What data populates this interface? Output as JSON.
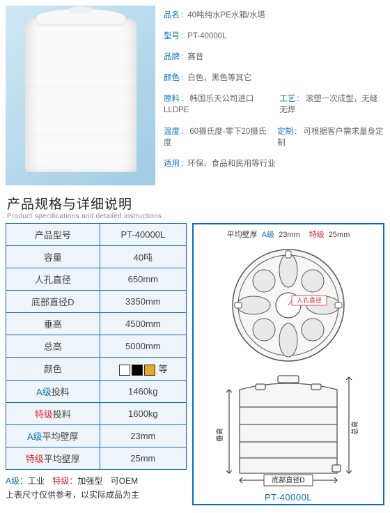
{
  "product": {
    "name_label": "品名",
    "name_value": "40吨纯水PE水箱/水塔",
    "model_label": "型号",
    "model_value": "PT-40000L",
    "brand_label": "品牌",
    "brand_value": "赛普",
    "color_label": "颜色",
    "color_value": "白色，黑色等其它",
    "material_label": "原料",
    "material_value": "韩国乐天公司进口LLDPE",
    "process_label": "工艺",
    "process_value": "滚塑一次成型，无缝无焊",
    "temp_label": "温度",
    "temp_value": "60摄氏度-零下20摄氏度",
    "custom_label": "定制",
    "custom_value": "可根据客户需求量身定制",
    "app_label": "适用",
    "app_value": "环保、食品和民用等行业"
  },
  "section_title": {
    "zh": "产品规格与详细说明",
    "en": "Product specifications and detailed instructions"
  },
  "table": {
    "rows": [
      {
        "label": "产品型号",
        "value": "PT-40000L"
      },
      {
        "label": "容量",
        "value": "40吨"
      },
      {
        "label": "人孔直径",
        "value": "650mm"
      },
      {
        "label": "底部直径D",
        "value": "3350mm"
      },
      {
        "label": "垂高",
        "value": "4500mm"
      },
      {
        "label": "总高",
        "value": "5000mm"
      },
      {
        "label": "颜色",
        "value": ""
      },
      {
        "label_prefix": "A级",
        "label_suffix": "投料",
        "value": "1460kg",
        "grade": "a"
      },
      {
        "label_prefix": "特级",
        "label_suffix": "投料",
        "value": "1600kg",
        "grade": "t"
      },
      {
        "label_prefix": "A级",
        "label_suffix": "平均壁厚",
        "value": "23mm",
        "grade": "a"
      },
      {
        "label_prefix": "特级",
        "label_suffix": "平均壁厚",
        "value": "25mm",
        "grade": "t"
      }
    ],
    "color_row_suffix": "等",
    "swatches": [
      "#ffffff",
      "#000000",
      "#e6a62e"
    ]
  },
  "footnotes": {
    "a_label": "A级：",
    "a_text": "工业",
    "t_label": "特级：",
    "t_text": "加强型",
    "oem": "可OEM",
    "disclaimer": "上表尺寸仅供参考，以实际成品为主"
  },
  "diagram": {
    "thickness_label": "平均壁厚",
    "a_label": "A级",
    "a_value": "23mm",
    "t_label": "特级",
    "t_value": "25mm",
    "manhole_label": "人孔直径",
    "vheight_label": "垂高",
    "theight_label": "总高",
    "diameter_label": "底部直径D",
    "model_caption": "PT-40000L",
    "colors": {
      "outline": "#555555",
      "accent": "#d9272e",
      "frame": "#0a6fb8",
      "fill_light": "#f6f6f6",
      "fill_mid": "#e9e9e9"
    }
  }
}
